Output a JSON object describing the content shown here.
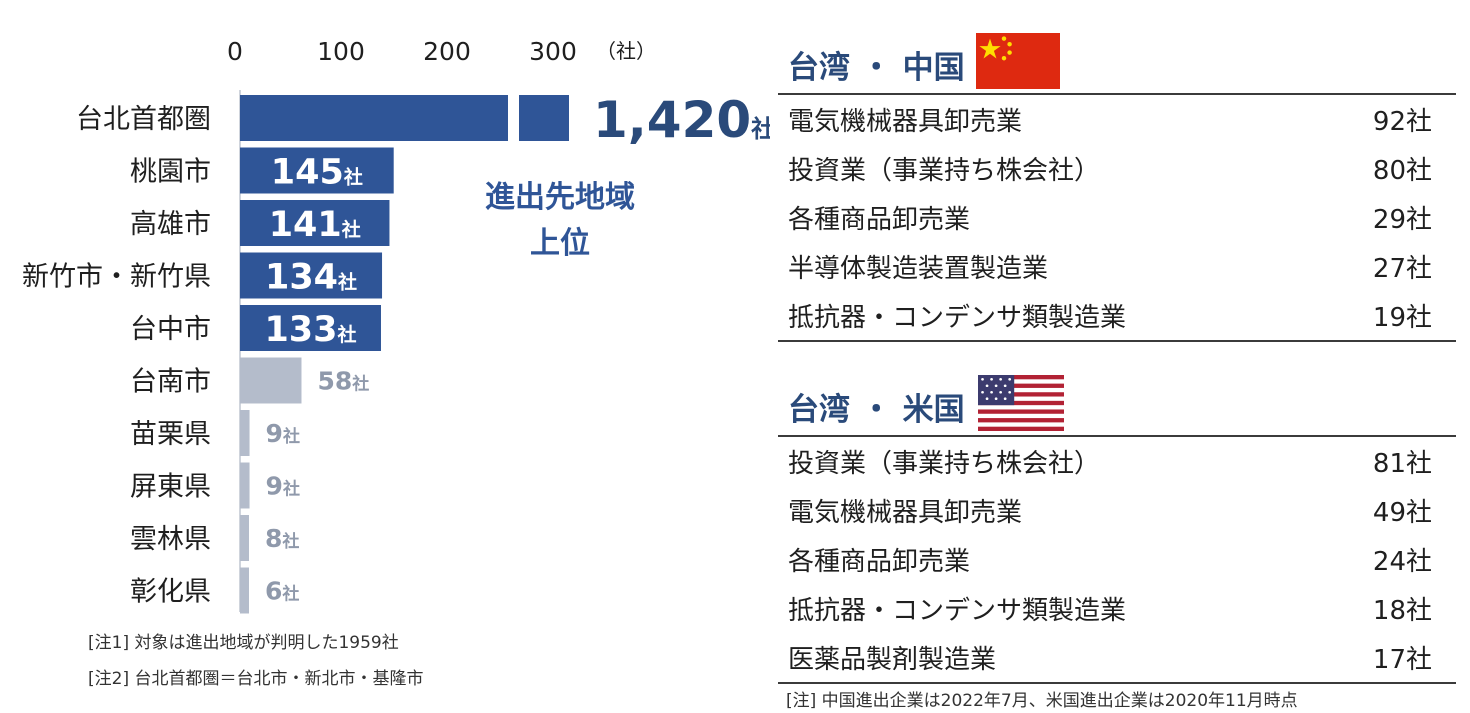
{
  "chart_data": {
    "type": "bar",
    "orientation": "horizontal",
    "axis_ticks": [
      "0",
      "100",
      "200",
      "300"
    ],
    "axis_unit": "（社）",
    "axis_break": true,
    "categories": [
      "台北首都圏",
      "桃園市",
      "高雄市",
      "新竹市・新竹県",
      "台中市",
      "台南市",
      "苗栗県",
      "屏東県",
      "雲林県",
      "彰化県"
    ],
    "values": [
      1420,
      145,
      141,
      134,
      133,
      58,
      9,
      9,
      8,
      6
    ],
    "value_labels": [
      "1,420",
      "145",
      "141",
      "134",
      "133",
      "58",
      "9",
      "9",
      "8",
      "6"
    ],
    "value_unit": "社",
    "highlight_count": 5,
    "annotation": [
      "進出先地域",
      "上位"
    ],
    "colors": {
      "highlight": "#2f5597",
      "muted": "#b4bccb",
      "highlight_label": "#ffffff",
      "muted_label": "#8f99ab",
      "annotation": "#2f5597"
    }
  },
  "notes": [
    "[注1]  対象は進出地域が判明した1959社",
    "[注2]  台北首都圏＝台北市・新北市・基隆市"
  ],
  "panels": [
    {
      "title": "台湾 ・ 中国",
      "flag_icon": "china-flag-icon",
      "rows": [
        {
          "name": "電気機械器具卸売業",
          "count": "92社"
        },
        {
          "name": "投資業（事業持ち株会社）",
          "count": "80社"
        },
        {
          "name": "各種商品卸売業",
          "count": "29社"
        },
        {
          "name": "半導体製造装置製造業",
          "count": "27社"
        },
        {
          "name": "抵抗器・コンデンサ類製造業",
          "count": "19社"
        }
      ]
    },
    {
      "title": "台湾 ・ 米国",
      "flag_icon": "usa-flag-icon",
      "rows": [
        {
          "name": "投資業（事業持ち株会社）",
          "count": "81社"
        },
        {
          "name": "電気機械器具卸売業",
          "count": "49社"
        },
        {
          "name": "各種商品卸売業",
          "count": "24社"
        },
        {
          "name": "抵抗器・コンデンサ類製造業",
          "count": "18社"
        },
        {
          "name": "医薬品製剤製造業",
          "count": "17社"
        }
      ]
    }
  ],
  "footnote": "[注]  中国進出企業は2022年7月、米国進出企業は2020年11月時点"
}
